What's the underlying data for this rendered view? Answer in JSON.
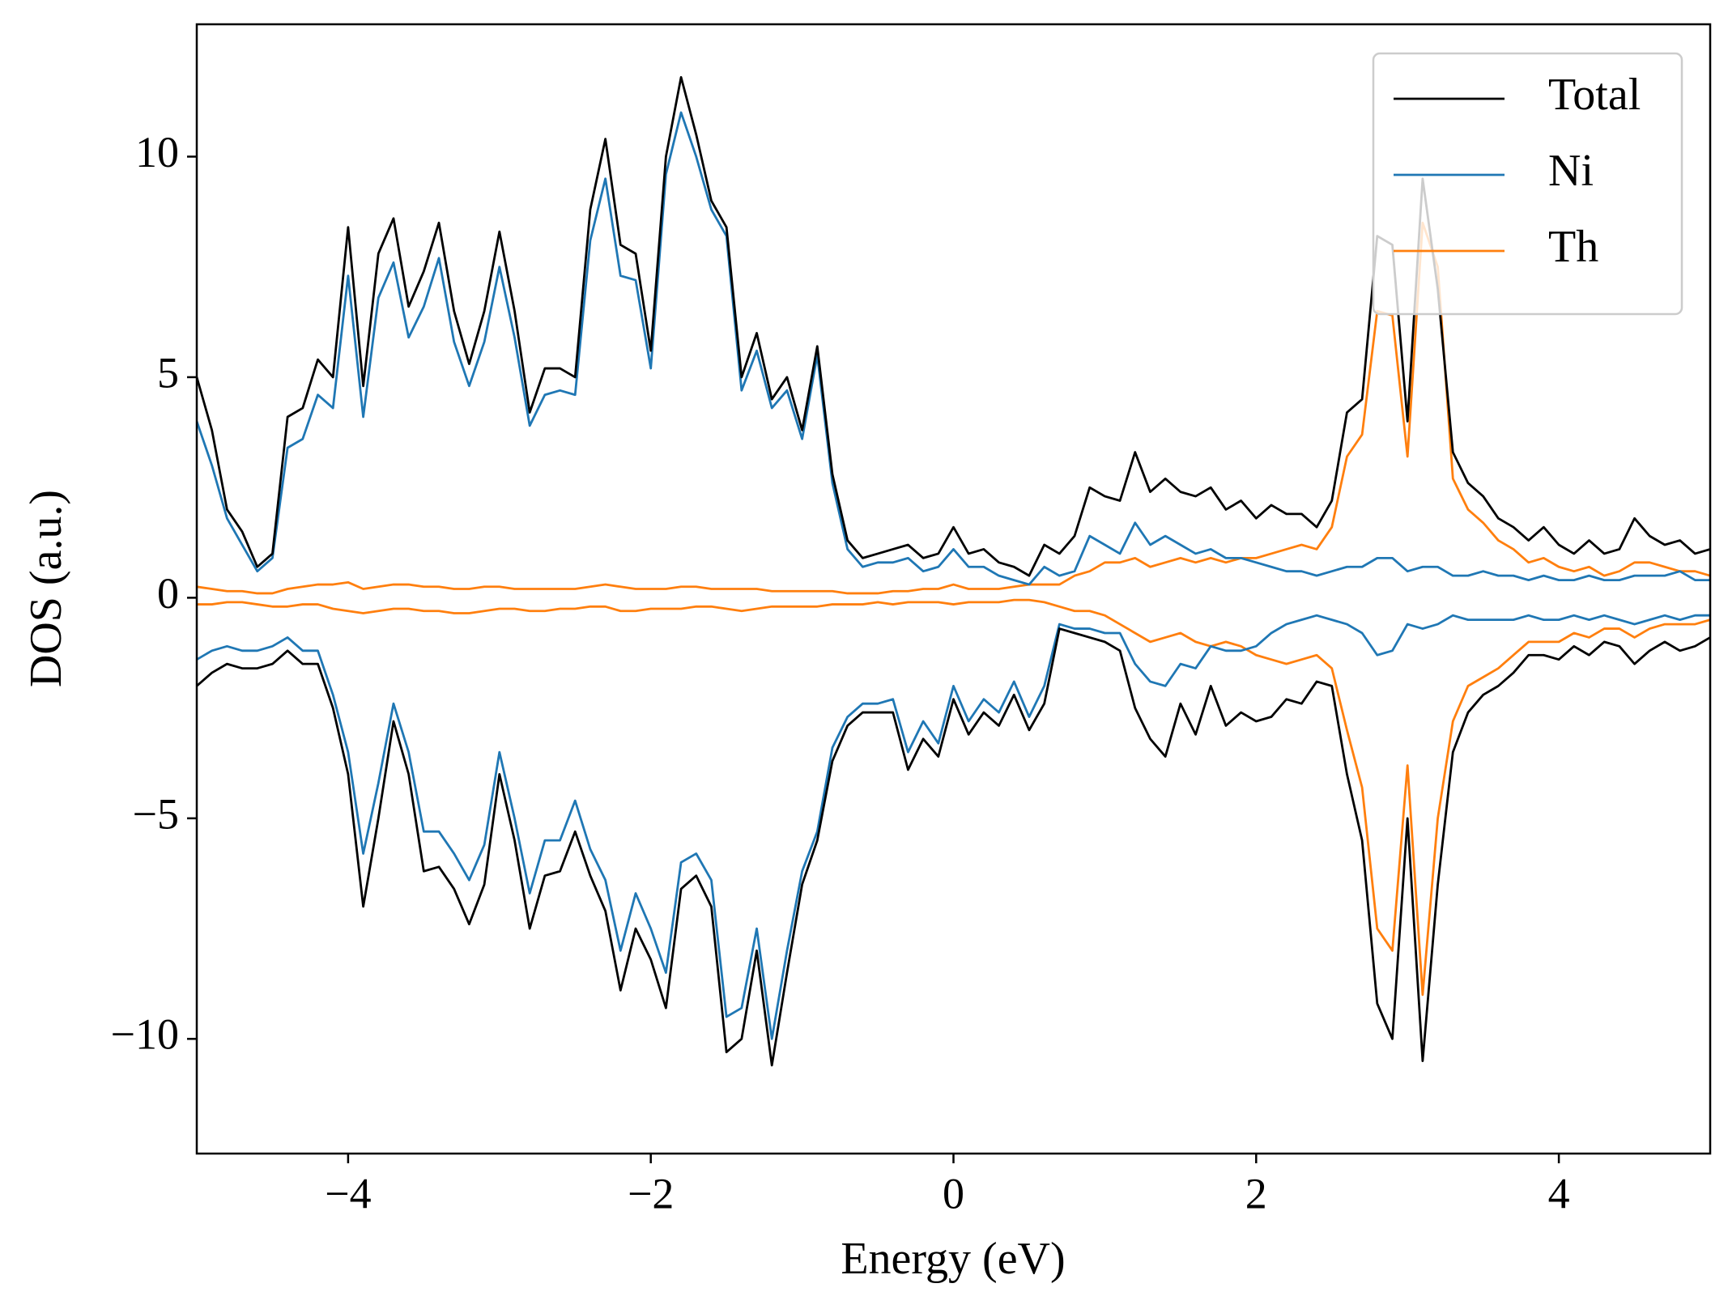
{
  "chart_data": {
    "type": "line",
    "xlabel": "Energy (eV)",
    "ylabel": "DOS (a.u.)",
    "xlim": [
      -5,
      5
    ],
    "ylim": [
      -12.6,
      13.0
    ],
    "xticks": [
      {
        "value": -4,
        "label": "−4"
      },
      {
        "value": -2,
        "label": "−2"
      },
      0,
      2,
      4
    ],
    "yticks": [
      {
        "value": -10,
        "label": "−10"
      },
      {
        "value": -5,
        "label": "−5"
      },
      0,
      5,
      10
    ],
    "legend": "upper right",
    "x": [
      -5.0,
      -4.9,
      -4.8,
      -4.7,
      -4.6,
      -4.5,
      -4.4,
      -4.3,
      -4.2,
      -4.1,
      -4.0,
      -3.9,
      -3.8,
      -3.7,
      -3.6,
      -3.5,
      -3.4,
      -3.3,
      -3.2,
      -3.1,
      -3.0,
      -2.9,
      -2.8,
      -2.7,
      -2.6,
      -2.5,
      -2.4,
      -2.3,
      -2.2,
      -2.1,
      -2.0,
      -1.9,
      -1.8,
      -1.7,
      -1.6,
      -1.5,
      -1.4,
      -1.3,
      -1.2,
      -1.1,
      -1.0,
      -0.9,
      -0.8,
      -0.7,
      -0.6,
      -0.5,
      -0.4,
      -0.3,
      -0.2,
      -0.1,
      0.0,
      0.1,
      0.2,
      0.3,
      0.4,
      0.5,
      0.6,
      0.7,
      0.8,
      0.9,
      1.0,
      1.1,
      1.2,
      1.3,
      1.4,
      1.5,
      1.6,
      1.7,
      1.8,
      1.9,
      2.0,
      2.1,
      2.2,
      2.3,
      2.4,
      2.5,
      2.6,
      2.7,
      2.8,
      2.9,
      3.0,
      3.1,
      3.2,
      3.3,
      3.4,
      3.5,
      3.6,
      3.7,
      3.8,
      3.9,
      4.0,
      4.1,
      4.2,
      4.3,
      4.4,
      4.5,
      4.6,
      4.7,
      4.8,
      4.9,
      5.0
    ],
    "series": [
      {
        "name": "Total",
        "color": "#000000",
        "values": [
          5.0,
          3.8,
          2.0,
          1.5,
          0.7,
          1.0,
          4.1,
          4.3,
          5.4,
          5.0,
          8.4,
          4.8,
          7.8,
          8.6,
          6.6,
          7.4,
          8.5,
          6.5,
          5.3,
          6.5,
          8.3,
          6.5,
          4.2,
          5.2,
          5.2,
          5.0,
          8.8,
          10.4,
          8.0,
          7.8,
          5.6,
          10.0,
          11.8,
          10.5,
          9.0,
          8.4,
          5.0,
          6.0,
          4.5,
          5.0,
          3.8,
          5.7,
          2.8,
          1.3,
          0.9,
          1.0,
          1.1,
          1.2,
          0.9,
          1.0,
          1.6,
          1.0,
          1.1,
          0.8,
          0.7,
          0.5,
          1.2,
          1.0,
          1.4,
          2.5,
          2.3,
          2.2,
          3.3,
          2.4,
          2.7,
          2.4,
          2.3,
          2.5,
          2.0,
          2.2,
          1.8,
          2.1,
          1.9,
          1.9,
          1.6,
          2.2,
          4.2,
          4.5,
          8.2,
          8.0,
          4.0,
          9.5,
          7.0,
          3.3,
          2.6,
          2.3,
          1.8,
          1.6,
          1.3,
          1.6,
          1.2,
          1.0,
          1.3,
          1.0,
          1.1,
          1.8,
          1.4,
          1.2,
          1.3,
          1.0,
          1.1
        ],
        "down": [
          -2.0,
          -1.7,
          -1.5,
          -1.6,
          -1.6,
          -1.5,
          -1.2,
          -1.5,
          -1.5,
          -2.5,
          -4.0,
          -7.0,
          -5.0,
          -2.8,
          -4.0,
          -6.2,
          -6.1,
          -6.6,
          -7.4,
          -6.5,
          -4.0,
          -5.5,
          -7.5,
          -6.3,
          -6.2,
          -5.3,
          -6.3,
          -7.1,
          -8.9,
          -7.5,
          -8.2,
          -9.3,
          -6.6,
          -6.3,
          -7.0,
          -10.3,
          -10.0,
          -8.0,
          -10.6,
          -8.5,
          -6.5,
          -5.5,
          -3.7,
          -2.9,
          -2.6,
          -2.6,
          -2.6,
          -3.9,
          -3.2,
          -3.6,
          -2.3,
          -3.1,
          -2.6,
          -2.9,
          -2.2,
          -3.0,
          -2.4,
          -0.7,
          -0.8,
          -0.9,
          -1.0,
          -1.2,
          -2.5,
          -3.2,
          -3.6,
          -2.4,
          -3.1,
          -2.0,
          -2.9,
          -2.6,
          -2.8,
          -2.7,
          -2.3,
          -2.4,
          -1.9,
          -2.0,
          -4.0,
          -5.5,
          -9.2,
          -10.0,
          -5.0,
          -10.5,
          -6.5,
          -3.5,
          -2.6,
          -2.2,
          -2.0,
          -1.7,
          -1.3,
          -1.3,
          -1.4,
          -1.1,
          -1.3,
          -1.0,
          -1.1,
          -1.5,
          -1.2,
          -1.0,
          -1.2,
          -1.1,
          -0.9
        ]
      },
      {
        "name": "Ni",
        "color": "#1f77b4",
        "values": [
          4.0,
          3.0,
          1.8,
          1.2,
          0.6,
          0.9,
          3.4,
          3.6,
          4.6,
          4.3,
          7.3,
          4.1,
          6.8,
          7.6,
          5.9,
          6.6,
          7.7,
          5.8,
          4.8,
          5.8,
          7.5,
          5.9,
          3.9,
          4.6,
          4.7,
          4.6,
          8.1,
          9.5,
          7.3,
          7.2,
          5.2,
          9.6,
          11.0,
          10.0,
          8.8,
          8.2,
          4.7,
          5.6,
          4.3,
          4.7,
          3.6,
          5.5,
          2.6,
          1.1,
          0.7,
          0.8,
          0.8,
          0.9,
          0.6,
          0.7,
          1.1,
          0.7,
          0.7,
          0.5,
          0.4,
          0.3,
          0.7,
          0.5,
          0.6,
          1.4,
          1.2,
          1.0,
          1.7,
          1.2,
          1.4,
          1.2,
          1.0,
          1.1,
          0.9,
          0.9,
          0.8,
          0.7,
          0.6,
          0.6,
          0.5,
          0.6,
          0.7,
          0.7,
          0.9,
          0.9,
          0.6,
          0.7,
          0.7,
          0.5,
          0.5,
          0.6,
          0.5,
          0.5,
          0.4,
          0.5,
          0.4,
          0.4,
          0.5,
          0.4,
          0.4,
          0.5,
          0.5,
          0.5,
          0.6,
          0.4,
          0.4
        ],
        "down": [
          -1.4,
          -1.2,
          -1.1,
          -1.2,
          -1.2,
          -1.1,
          -0.9,
          -1.2,
          -1.2,
          -2.2,
          -3.5,
          -5.8,
          -4.2,
          -2.4,
          -3.5,
          -5.3,
          -5.3,
          -5.8,
          -6.4,
          -5.6,
          -3.5,
          -5.0,
          -6.7,
          -5.5,
          -5.5,
          -4.6,
          -5.7,
          -6.4,
          -8.0,
          -6.7,
          -7.5,
          -8.5,
          -6.0,
          -5.8,
          -6.4,
          -9.5,
          -9.3,
          -7.5,
          -10.0,
          -8.0,
          -6.2,
          -5.3,
          -3.4,
          -2.7,
          -2.4,
          -2.4,
          -2.3,
          -3.5,
          -2.8,
          -3.3,
          -2.0,
          -2.8,
          -2.3,
          -2.6,
          -1.9,
          -2.7,
          -2.0,
          -0.6,
          -0.7,
          -0.7,
          -0.8,
          -0.8,
          -1.5,
          -1.9,
          -2.0,
          -1.5,
          -1.6,
          -1.1,
          -1.2,
          -1.2,
          -1.1,
          -0.8,
          -0.6,
          -0.5,
          -0.4,
          -0.5,
          -0.6,
          -0.8,
          -1.3,
          -1.2,
          -0.6,
          -0.7,
          -0.6,
          -0.4,
          -0.5,
          -0.5,
          -0.5,
          -0.5,
          -0.4,
          -0.5,
          -0.5,
          -0.4,
          -0.5,
          -0.4,
          -0.5,
          -0.6,
          -0.5,
          -0.4,
          -0.5,
          -0.4,
          -0.4
        ]
      },
      {
        "name": "Th",
        "color": "#ff7f0e",
        "values": [
          0.25,
          0.2,
          0.15,
          0.15,
          0.1,
          0.1,
          0.2,
          0.25,
          0.3,
          0.3,
          0.35,
          0.2,
          0.25,
          0.3,
          0.3,
          0.25,
          0.25,
          0.2,
          0.2,
          0.25,
          0.25,
          0.2,
          0.2,
          0.2,
          0.2,
          0.2,
          0.25,
          0.3,
          0.25,
          0.2,
          0.2,
          0.2,
          0.25,
          0.25,
          0.2,
          0.2,
          0.2,
          0.2,
          0.15,
          0.15,
          0.15,
          0.15,
          0.15,
          0.1,
          0.1,
          0.1,
          0.15,
          0.15,
          0.2,
          0.2,
          0.3,
          0.2,
          0.2,
          0.2,
          0.25,
          0.3,
          0.3,
          0.3,
          0.5,
          0.6,
          0.8,
          0.8,
          0.9,
          0.7,
          0.8,
          0.9,
          0.8,
          0.9,
          0.8,
          0.9,
          0.9,
          1.0,
          1.1,
          1.2,
          1.1,
          1.6,
          3.2,
          3.7,
          6.5,
          6.4,
          3.2,
          8.5,
          7.5,
          2.7,
          2.0,
          1.7,
          1.3,
          1.1,
          0.8,
          0.9,
          0.7,
          0.6,
          0.7,
          0.5,
          0.6,
          0.8,
          0.8,
          0.7,
          0.6,
          0.6,
          0.5
        ],
        "down": [
          -0.15,
          -0.15,
          -0.1,
          -0.1,
          -0.15,
          -0.2,
          -0.2,
          -0.15,
          -0.15,
          -0.25,
          -0.3,
          -0.35,
          -0.3,
          -0.25,
          -0.25,
          -0.3,
          -0.3,
          -0.35,
          -0.35,
          -0.3,
          -0.25,
          -0.25,
          -0.3,
          -0.3,
          -0.25,
          -0.25,
          -0.2,
          -0.2,
          -0.3,
          -0.3,
          -0.25,
          -0.25,
          -0.25,
          -0.2,
          -0.2,
          -0.25,
          -0.3,
          -0.25,
          -0.2,
          -0.2,
          -0.2,
          -0.2,
          -0.15,
          -0.15,
          -0.15,
          -0.1,
          -0.15,
          -0.1,
          -0.1,
          -0.1,
          -0.15,
          -0.1,
          -0.1,
          -0.1,
          -0.05,
          -0.05,
          -0.1,
          -0.2,
          -0.3,
          -0.3,
          -0.4,
          -0.6,
          -0.8,
          -1.0,
          -0.9,
          -0.8,
          -1.0,
          -1.1,
          -1.0,
          -1.1,
          -1.3,
          -1.4,
          -1.5,
          -1.4,
          -1.3,
          -1.6,
          -3.0,
          -4.3,
          -7.5,
          -8.0,
          -3.8,
          -9.0,
          -5.0,
          -2.8,
          -2.0,
          -1.8,
          -1.6,
          -1.3,
          -1.0,
          -1.0,
          -1.0,
          -0.8,
          -0.9,
          -0.7,
          -0.7,
          -0.9,
          -0.7,
          -0.6,
          -0.6,
          -0.6,
          -0.5
        ]
      }
    ]
  }
}
